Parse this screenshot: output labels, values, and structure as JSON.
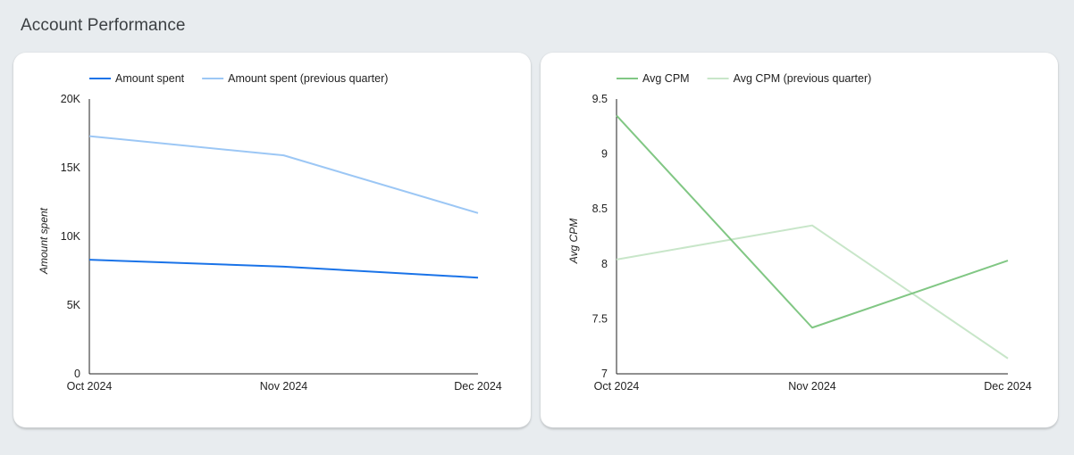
{
  "page": {
    "title": "Account Performance"
  },
  "chart_data": [
    {
      "type": "line",
      "title": "",
      "categories": [
        "Oct 2024",
        "Nov 2024",
        "Dec 2024"
      ],
      "series": [
        {
          "name": "Amount spent",
          "color": "#1a73e8",
          "values": [
            8300,
            7800,
            7000
          ]
        },
        {
          "name": "Amount spent (previous quarter)",
          "color": "#9cc7f5",
          "values": [
            17300,
            15900,
            11700
          ]
        }
      ],
      "xlabel": "",
      "ylabel": "Amount spent",
      "ylim": [
        0,
        20000
      ],
      "yticks": [
        0,
        5000,
        10000,
        15000,
        20000
      ],
      "ytick_labels": [
        "0",
        "5K",
        "10K",
        "15K",
        "20K"
      ],
      "grid": false,
      "legend": "top-left"
    },
    {
      "type": "line",
      "title": "",
      "categories": [
        "Oct 2024",
        "Nov 2024",
        "Dec 2024"
      ],
      "series": [
        {
          "name": "Avg CPM",
          "color": "#81c784",
          "values": [
            9.35,
            7.42,
            8.03
          ]
        },
        {
          "name": "Avg CPM (previous quarter)",
          "color": "#c8e6c9",
          "values": [
            8.04,
            8.35,
            7.14
          ]
        }
      ],
      "xlabel": "",
      "ylabel": "Avg CPM",
      "ylim": [
        7,
        9.5
      ],
      "yticks": [
        7,
        7.5,
        8,
        8.5,
        9,
        9.5
      ],
      "ytick_labels": [
        "7",
        "7.5",
        "8",
        "8.5",
        "9",
        "9.5"
      ],
      "grid": false,
      "legend": "top-left"
    }
  ]
}
